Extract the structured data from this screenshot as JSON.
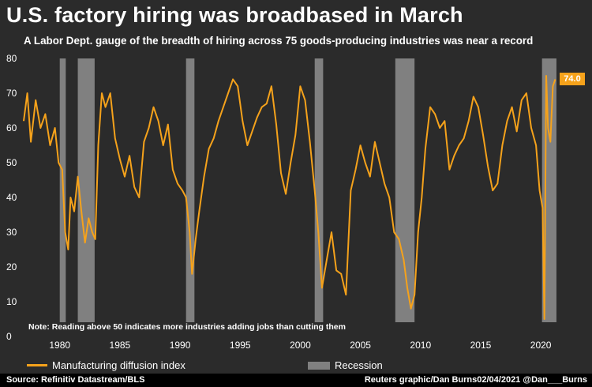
{
  "header": {
    "title": "U.S. factory hiring was broadbased in March",
    "subtitle": "A Labor Dept. gauge of the breadth of hiring across 75 goods-producing industries was near a record"
  },
  "note": "Note: Reading above 50 indicates more industries adding jobs than cutting them",
  "last_value_label": "74.0",
  "legend": {
    "series_label": "Manufacturing diffusion index",
    "recession_label": "Recession"
  },
  "footer": {
    "source": "Source: Refinitiv Datastream/BLS",
    "credit": "Reuters graphic/Dan Burns02/04/2021 @Dan___Burns"
  },
  "colors": {
    "background": "#2b2b2b",
    "line": "#f5a21b",
    "recession": "#808080",
    "footer_bg": "#000000"
  },
  "chart_data": {
    "type": "line",
    "title": "U.S. factory hiring was broadbased in March",
    "xlabel": "",
    "ylabel": "",
    "xlim": [
      1977.0,
      2021.5
    ],
    "ylim": [
      0,
      80
    ],
    "x_ticks": [
      1980,
      1985,
      1990,
      1995,
      2000,
      2005,
      2010,
      2015,
      2020
    ],
    "y_ticks": [
      0,
      10,
      20,
      30,
      40,
      50,
      60,
      70,
      80
    ],
    "grid": false,
    "legend_position": "bottom",
    "recessions": [
      {
        "start": 1980.0,
        "end": 1980.5
      },
      {
        "start": 1981.5,
        "end": 1982.9
      },
      {
        "start": 1990.5,
        "end": 1991.2
      },
      {
        "start": 2001.2,
        "end": 2001.9
      },
      {
        "start": 2007.9,
        "end": 2009.5
      },
      {
        "start": 2020.1,
        "end": 2021.3
      }
    ],
    "series": [
      {
        "name": "Manufacturing diffusion index",
        "x": [
          1977.0,
          1977.3,
          1977.6,
          1978.0,
          1978.4,
          1978.8,
          1979.2,
          1979.6,
          1979.9,
          1980.2,
          1980.45,
          1980.7,
          1980.9,
          1981.2,
          1981.5,
          1981.8,
          1982.1,
          1982.4,
          1982.7,
          1982.95,
          1983.2,
          1983.5,
          1983.8,
          1984.2,
          1984.6,
          1985.0,
          1985.4,
          1985.8,
          1986.2,
          1986.6,
          1987.0,
          1987.4,
          1987.8,
          1988.2,
          1988.6,
          1989.0,
          1989.4,
          1989.8,
          1990.2,
          1990.5,
          1990.8,
          1991.0,
          1991.3,
          1991.6,
          1992.0,
          1992.4,
          1992.8,
          1993.2,
          1993.6,
          1994.0,
          1994.4,
          1994.8,
          1995.2,
          1995.6,
          1996.0,
          1996.4,
          1996.8,
          1997.2,
          1997.6,
          1998.0,
          1998.4,
          1998.8,
          1999.2,
          1999.6,
          2000.0,
          2000.4,
          2000.8,
          2001.2,
          2001.5,
          2001.8,
          2002.2,
          2002.6,
          2003.0,
          2003.4,
          2003.8,
          2004.2,
          2004.6,
          2005.0,
          2005.4,
          2005.8,
          2006.2,
          2006.6,
          2007.0,
          2007.4,
          2007.8,
          2008.2,
          2008.6,
          2008.9,
          2009.2,
          2009.5,
          2009.8,
          2010.1,
          2010.4,
          2010.8,
          2011.2,
          2011.6,
          2012.0,
          2012.4,
          2012.8,
          2013.2,
          2013.6,
          2014.0,
          2014.4,
          2014.8,
          2015.2,
          2015.6,
          2016.0,
          2016.4,
          2016.8,
          2017.2,
          2017.6,
          2018.0,
          2018.4,
          2018.8,
          2019.2,
          2019.6,
          2019.9,
          2020.15,
          2020.3,
          2020.45,
          2020.6,
          2020.8,
          2021.0,
          2021.2
        ],
        "values": [
          62,
          70,
          56,
          68,
          60,
          64,
          55,
          60,
          50,
          48,
          30,
          25,
          40,
          36,
          46,
          36,
          27,
          34,
          30,
          28,
          55,
          70,
          66,
          70,
          57,
          51,
          46,
          52,
          43,
          40,
          56,
          60,
          66,
          62,
          55,
          61,
          48,
          44,
          42,
          40,
          30,
          18,
          28,
          36,
          46,
          54,
          57,
          62,
          66,
          70,
          74,
          72,
          62,
          55,
          59,
          63,
          66,
          67,
          72,
          61,
          47,
          41,
          50,
          58,
          72,
          68,
          56,
          42,
          30,
          14,
          22,
          30,
          19,
          18,
          12,
          42,
          48,
          55,
          50,
          46,
          56,
          50,
          44,
          40,
          30,
          28,
          22,
          14,
          8,
          12,
          30,
          40,
          54,
          66,
          64,
          60,
          62,
          48,
          52,
          55,
          57,
          62,
          69,
          66,
          58,
          49,
          42,
          44,
          55,
          62,
          66,
          59,
          68,
          70,
          60,
          55,
          42,
          37,
          5,
          75,
          60,
          56,
          72,
          74
        ]
      }
    ]
  }
}
